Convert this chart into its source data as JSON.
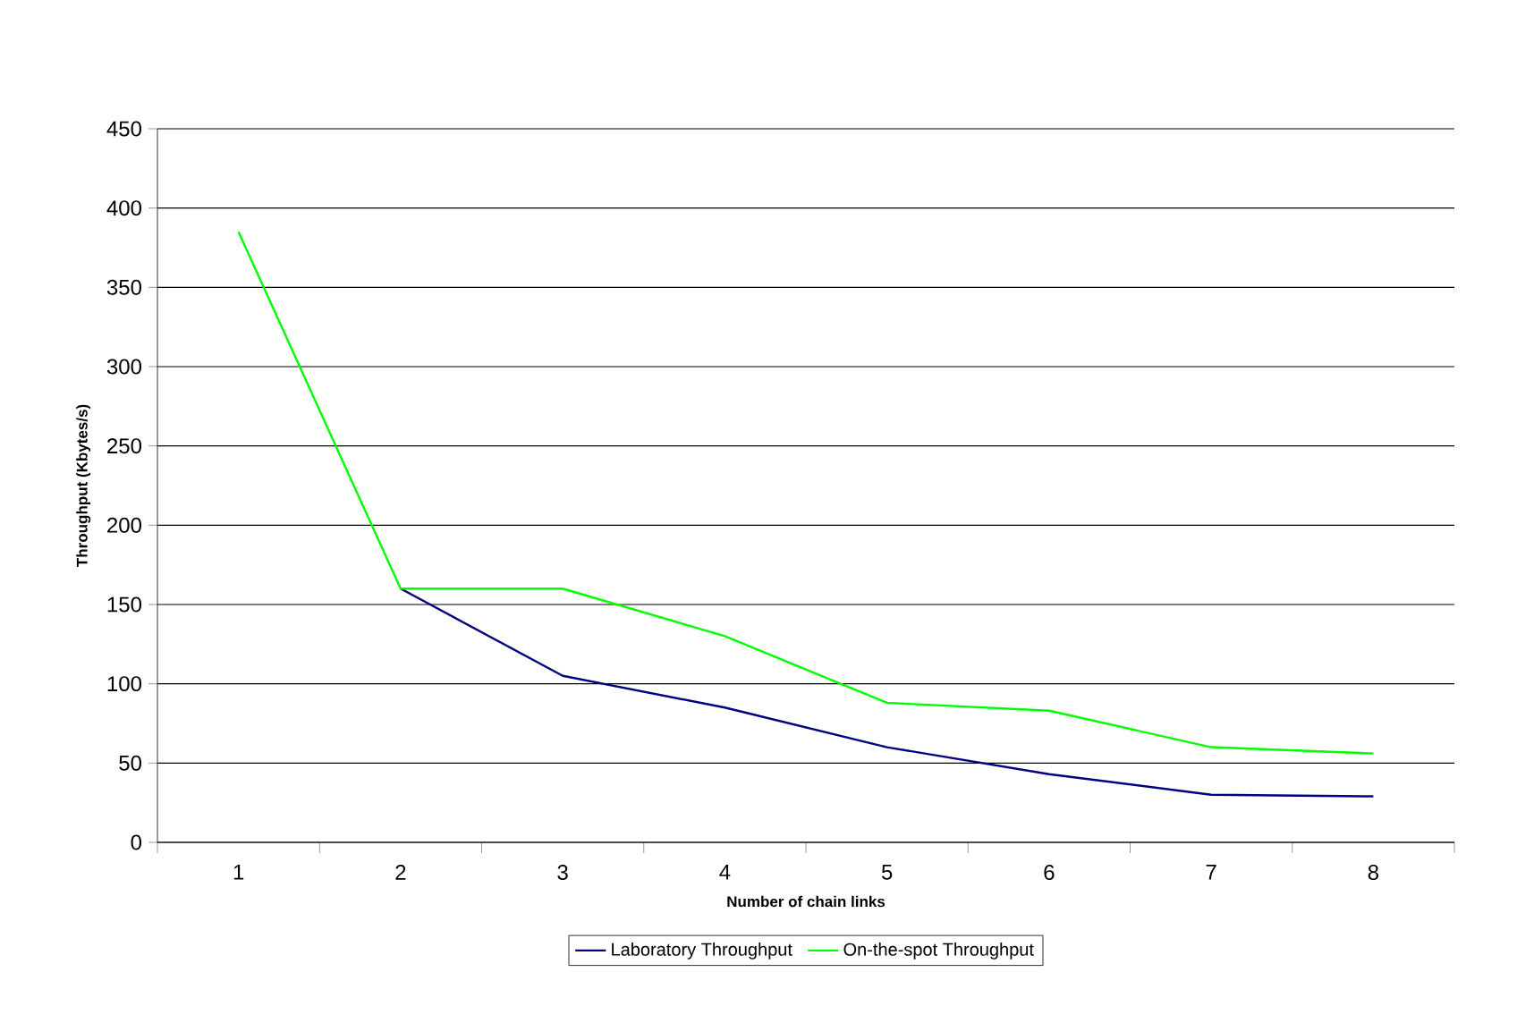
{
  "chart_data": {
    "type": "line",
    "xlabel": "Number of chain links",
    "ylabel": "Throughput (Kbytes/s)",
    "categories": [
      "1",
      "2",
      "3",
      "4",
      "5",
      "6",
      "7",
      "8"
    ],
    "series": [
      {
        "name": "Laboratory Throughput",
        "color": "#000080",
        "values": [
          null,
          160,
          105,
          85,
          60,
          43,
          30,
          29
        ]
      },
      {
        "name": "On-the-spot Throughput",
        "color": "#00ff00",
        "values": [
          385,
          160,
          160,
          130,
          88,
          83,
          60,
          56
        ]
      }
    ],
    "ylim": [
      0,
      450
    ],
    "yticks": [
      0,
      50,
      100,
      150,
      200,
      250,
      300,
      350,
      400,
      450
    ],
    "grid": "y",
    "legend": "bottom",
    "marker": "none",
    "line_style": "solid"
  }
}
